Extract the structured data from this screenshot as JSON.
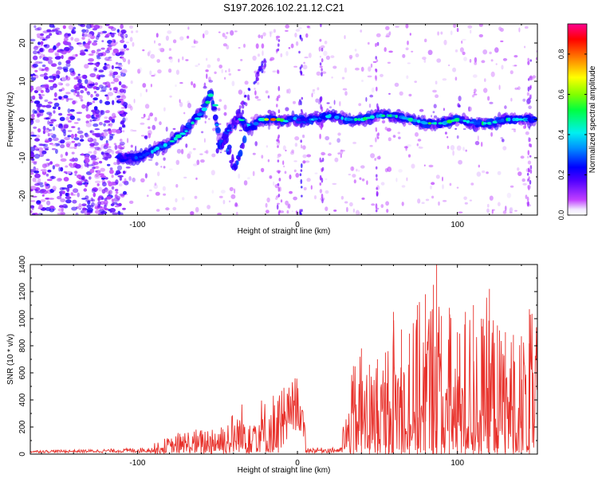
{
  "figure": {
    "title": "S197.2026.102.21.12.C21"
  },
  "colors": {
    "line": "#e8302a",
    "frame": "#000000",
    "colormap": [
      "#ffffff",
      "#d8c8f4",
      "#8b30ff",
      "#4a00e8",
      "#0000ff",
      "#0a7cff",
      "#00e8e8",
      "#00e060",
      "#40ff00",
      "#c8f000",
      "#ffb000",
      "#ff2000",
      "#e00070"
    ]
  },
  "chart_data": [
    {
      "type": "heatmap",
      "title": "S197.2026.102.21.12.C21",
      "xlabel": "Height of straight line (km)",
      "ylabel": "Frequency (Hz)",
      "xlim": [
        -167,
        150
      ],
      "ylim": [
        -25,
        25
      ],
      "x_ticks": [
        -100,
        0,
        100
      ],
      "x_tick_labels": [
        "-100",
        "0",
        "100"
      ],
      "y_ticks": [
        -20,
        -10,
        0,
        10,
        20
      ],
      "y_tick_labels": [
        "-20",
        "-10",
        "0",
        "10",
        "20"
      ],
      "colorbar": {
        "label": "Normalized spectral amplitude",
        "range": [
          0,
          0.95
        ],
        "ticks": [
          0.0,
          0.2,
          0.4,
          0.6,
          0.8
        ],
        "tick_labels": [
          "0.0",
          "0.2",
          "0.4",
          "0.6",
          "0.8"
        ]
      },
      "ridge": {
        "x": [
          -112,
          -100,
          -90,
          -80,
          -70,
          -60,
          -54,
          -48,
          -44,
          -40,
          -36,
          -32,
          -28,
          -24,
          -20,
          -16,
          -12,
          -8,
          -4,
          0,
          10,
          20,
          30,
          40,
          50,
          60,
          70,
          80,
          90,
          100,
          110,
          120,
          130,
          140,
          148
        ],
        "freq": [
          -10,
          -10,
          -8,
          -6,
          -3,
          2,
          7,
          -7,
          -3,
          -1,
          0.5,
          -2,
          -2,
          0,
          0,
          0,
          0,
          -0.5,
          0.5,
          0,
          0,
          1,
          0,
          0,
          1,
          1,
          0,
          -1,
          -1,
          0,
          -1,
          -1,
          0,
          0,
          0
        ],
        "amplitude": [
          0.3,
          0.35,
          0.4,
          0.5,
          0.45,
          0.55,
          0.5,
          0.35,
          0.35,
          0.3,
          0.5,
          0.45,
          0.4,
          0.6,
          0.7,
          0.95,
          0.6,
          0.5,
          0.4,
          0.3,
          0.45,
          0.4,
          0.45,
          0.5,
          0.55,
          0.45,
          0.5,
          0.55,
          0.6,
          0.5,
          0.5,
          0.5,
          0.5,
          0.45,
          0.4
        ]
      },
      "secondary_branch": {
        "x": [
          -50,
          -45,
          -40,
          -36,
          -32
        ],
        "freq": [
          -7,
          -5,
          -12,
          -10,
          -2
        ]
      }
    },
    {
      "type": "line",
      "xlabel": "Height of straight line (km)",
      "ylabel": "SNR (10 * v/v)",
      "xlim": [
        -167,
        150
      ],
      "ylim": [
        0,
        1400
      ],
      "x_ticks": [
        -100,
        0,
        100
      ],
      "x_tick_labels": [
        "-100",
        "0",
        "100"
      ],
      "y_ticks": [
        0,
        200,
        400,
        600,
        800,
        1000,
        1200,
        1400
      ],
      "y_tick_labels": [
        "0",
        "200",
        "400",
        "600",
        "800",
        "1000",
        "1200",
        "1400"
      ],
      "series": [
        {
          "name": "SNR",
          "x": [
            -167,
            -150,
            -130,
            -110,
            -100,
            -90,
            -80,
            -70,
            -60,
            -50,
            -45,
            -40,
            -35,
            -30,
            -25,
            -20,
            -15,
            -10,
            -5,
            0,
            5,
            10,
            15,
            20,
            25,
            30,
            35,
            40,
            45,
            50,
            55,
            60,
            65,
            70,
            75,
            80,
            85,
            87,
            90,
            95,
            100,
            105,
            110,
            115,
            120,
            125,
            130,
            135,
            140,
            145,
            150
          ],
          "envelope": [
            30,
            35,
            40,
            50,
            60,
            70,
            120,
            180,
            180,
            280,
            260,
            320,
            380,
            470,
            460,
            400,
            470,
            520,
            520,
            590,
            190,
            40,
            30,
            50,
            200,
            300,
            650,
            780,
            660,
            700,
            750,
            1050,
            920,
            890,
            1100,
            1180,
            1250,
            1400,
            1020,
            1080,
            900,
            1050,
            1100,
            1000,
            1220,
            950,
            900,
            880,
            870,
            1070,
            950
          ]
        }
      ]
    }
  ]
}
